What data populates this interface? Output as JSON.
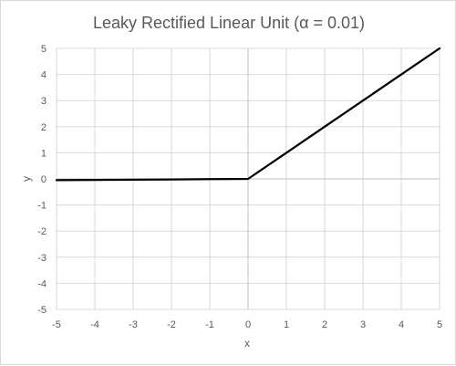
{
  "chart_data": {
    "type": "line",
    "title": "Leaky Rectified Linear Unit (α = 0.01)",
    "xlabel": "x",
    "ylabel": "y",
    "xlim": [
      -5,
      5
    ],
    "ylim": [
      -5,
      5
    ],
    "x_ticks": [
      -5,
      -4,
      -3,
      -2,
      -1,
      0,
      1,
      2,
      3,
      4,
      5
    ],
    "y_ticks": [
      -5,
      -4,
      -3,
      -2,
      -1,
      0,
      1,
      2,
      3,
      4,
      5
    ],
    "grid": true,
    "legend": "none",
    "series": [
      {
        "color": "#000000",
        "x": [
          -5,
          -4,
          -3,
          -2,
          -1,
          0,
          1,
          2,
          3,
          4,
          5
        ],
        "y": [
          -0.05,
          -0.04,
          -0.03,
          -0.02,
          -0.01,
          0,
          1,
          2,
          3,
          4,
          5
        ]
      }
    ],
    "colors": {
      "grid": "#d9d9d9",
      "zero_axis": "#bfbfbf",
      "text": "#595959"
    }
  }
}
